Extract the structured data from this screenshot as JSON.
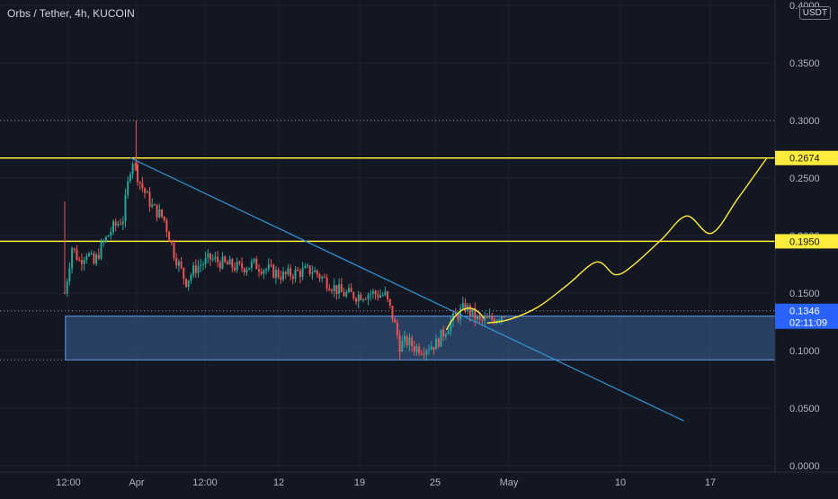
{
  "header": {
    "symbol": "Orbs / Tether, 4h, KUCOIN",
    "currency": "USDT"
  },
  "chart_data": {
    "type": "candlestick",
    "symbol": "Orbs / Tether",
    "interval": "4h",
    "exchange": "KUCOIN",
    "ylim": [
      0,
      0.4
    ],
    "y_ticks": [
      "0.0000",
      "0.0500",
      "0.1000",
      "0.1500",
      "0.2000",
      "0.2500",
      "0.3000",
      "0.3500",
      "0.4000"
    ],
    "x_ticks": [
      "12:00",
      "Apr",
      "12:00",
      "12",
      "19",
      "25",
      "May",
      "10",
      "17"
    ],
    "last_price": "0.1346",
    "countdown": "02:11:09",
    "horizontal_levels": [
      {
        "value": 0.2674,
        "label": "0.2674",
        "color": "#ffeb3b"
      },
      {
        "value": 0.195,
        "label": "0.1950",
        "color": "#ffeb3b"
      }
    ],
    "dotted_levels": [
      0.3,
      0.1346,
      0.092
    ],
    "support_zone": {
      "top": 0.13,
      "bottom": 0.092,
      "color": "#5b9cf6"
    },
    "trendline": {
      "color": "#2f8fd0",
      "from": {
        "day": 4.5,
        "price": 0.2675
      },
      "to": {
        "day": 42.5,
        "price": 0.039
      }
    },
    "projection": {
      "color": "#ffeb3b",
      "points": [
        {
          "day": 29.0,
          "price": 0.124
        },
        {
          "day": 30.5,
          "price": 0.127
        },
        {
          "day": 32.5,
          "price": 0.138
        },
        {
          "day": 34.5,
          "price": 0.157
        },
        {
          "day": 36.5,
          "price": 0.177
        },
        {
          "day": 37.8,
          "price": 0.166
        },
        {
          "day": 39.0,
          "price": 0.174
        },
        {
          "day": 41.0,
          "price": 0.197
        },
        {
          "day": 42.7,
          "price": 0.217
        },
        {
          "day": 44.4,
          "price": 0.202
        },
        {
          "day": 46.2,
          "price": 0.232
        },
        {
          "day": 48.2,
          "price": 0.2674
        }
      ]
    },
    "price_path": [
      {
        "day": 0.0,
        "price": 0.15
      },
      {
        "day": 0.5,
        "price": 0.19
      },
      {
        "day": 1.0,
        "price": 0.178
      },
      {
        "day": 1.5,
        "price": 0.186
      },
      {
        "day": 2.0,
        "price": 0.175
      },
      {
        "day": 2.5,
        "price": 0.19
      },
      {
        "day": 3.2,
        "price": 0.205
      },
      {
        "day": 4.0,
        "price": 0.215
      },
      {
        "day": 4.6,
        "price": 0.268
      },
      {
        "day": 5.2,
        "price": 0.245
      },
      {
        "day": 6.0,
        "price": 0.225
      },
      {
        "day": 6.8,
        "price": 0.215
      },
      {
        "day": 7.5,
        "price": 0.185
      },
      {
        "day": 8.3,
        "price": 0.16
      },
      {
        "day": 9.0,
        "price": 0.172
      },
      {
        "day": 10.0,
        "price": 0.18
      },
      {
        "day": 11.0,
        "price": 0.175
      },
      {
        "day": 12.0,
        "price": 0.172
      },
      {
        "day": 13.0,
        "price": 0.175
      },
      {
        "day": 14.0,
        "price": 0.17
      },
      {
        "day": 15.0,
        "price": 0.165
      },
      {
        "day": 16.0,
        "price": 0.168
      },
      {
        "day": 17.0,
        "price": 0.17
      },
      {
        "day": 18.0,
        "price": 0.16
      },
      {
        "day": 19.0,
        "price": 0.15
      },
      {
        "day": 20.0,
        "price": 0.148
      },
      {
        "day": 21.0,
        "price": 0.15
      },
      {
        "day": 22.0,
        "price": 0.148
      },
      {
        "day": 22.5,
        "price": 0.13
      },
      {
        "day": 23.0,
        "price": 0.105
      },
      {
        "day": 23.5,
        "price": 0.108
      },
      {
        "day": 24.0,
        "price": 0.103
      },
      {
        "day": 24.5,
        "price": 0.102
      },
      {
        "day": 25.5,
        "price": 0.106
      },
      {
        "day": 26.5,
        "price": 0.125
      },
      {
        "day": 27.5,
        "price": 0.138
      },
      {
        "day": 28.5,
        "price": 0.125
      },
      {
        "day": 29.5,
        "price": 0.128
      },
      {
        "day": 30.3,
        "price": 0.134
      }
    ],
    "wicks": [
      {
        "day": 0.0,
        "high": 0.23
      },
      {
        "day": 4.9,
        "high": 0.3
      },
      {
        "day": 23.0,
        "low": 0.092
      }
    ],
    "colors": {
      "up": "#26a69a",
      "down": "#ef5350",
      "background": "#131722",
      "grid": "#1e222d",
      "axis_text": "#b2b5be"
    }
  }
}
